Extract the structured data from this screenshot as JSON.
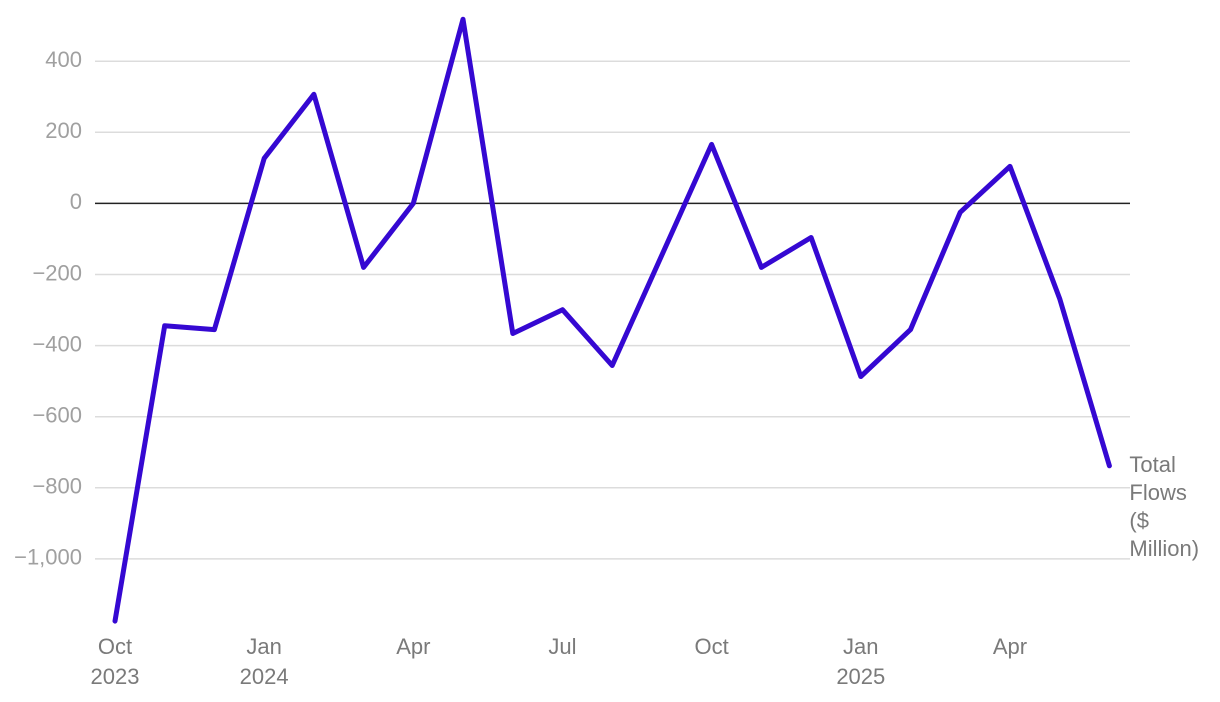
{
  "chart_data": {
    "type": "line",
    "categories": [
      "Oct 2023",
      null,
      null,
      "Jan 2024",
      null,
      null,
      "Apr",
      null,
      null,
      "Jul",
      null,
      null,
      "Oct",
      null,
      null,
      "Jan 2025",
      null,
      null,
      "Apr",
      null,
      null
    ],
    "series": [
      {
        "name": "Total Flows ($ Million)",
        "color": "#3508d2",
        "values": [
          -1175,
          -344,
          -355,
          127,
          307,
          -180,
          0,
          518,
          -366,
          -299,
          -456,
          -145,
          166,
          -180,
          -96,
          -487,
          -355,
          -25,
          104,
          -268,
          -738
        ]
      }
    ],
    "ylim": [
      -1200,
      530
    ],
    "yticks": [
      {
        "value": -1000,
        "label": "−1,000"
      },
      {
        "value": -800,
        "label": "−800"
      },
      {
        "value": -600,
        "label": "−600"
      },
      {
        "value": -400,
        "label": "−400"
      },
      {
        "value": -200,
        "label": "−200"
      },
      0,
      200,
      400
    ],
    "grid": true
  }
}
